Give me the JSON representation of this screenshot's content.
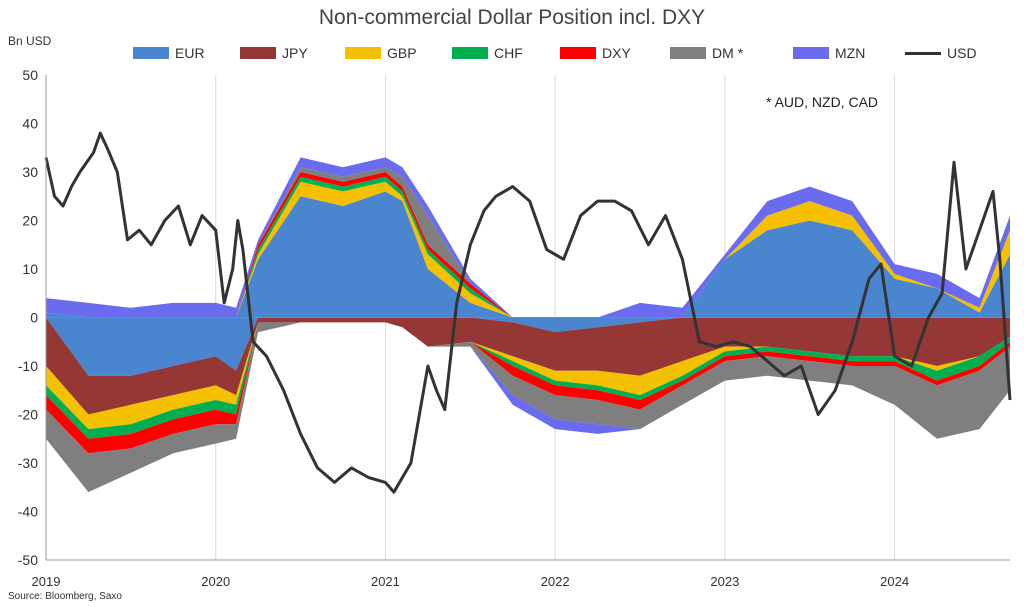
{
  "chart_data": {
    "type": "area",
    "title": "Non-commercial Dollar Position incl. DXY",
    "ylabel": "Bn USD",
    "source": "Source: Bloomberg, Saxo",
    "annotation": "* AUD, NZD, CAD",
    "ylim": [
      -50,
      50
    ],
    "yticks": [
      50,
      40,
      30,
      20,
      10,
      0,
      -10,
      -20,
      -30,
      -40,
      -50
    ],
    "xlim": [
      2019.0,
      2024.68
    ],
    "xticks": [
      {
        "value": 2019,
        "label": "2019"
      },
      {
        "value": 2020,
        "label": "2020"
      },
      {
        "value": 2021,
        "label": "2021"
      },
      {
        "value": 2022,
        "label": "2022"
      },
      {
        "value": 2023,
        "label": "2023"
      },
      {
        "value": 2024,
        "label": "2024"
      }
    ],
    "x": [
      2019.0,
      2019.25,
      2019.5,
      2019.75,
      2020.0,
      2020.12,
      2020.25,
      2020.5,
      2020.75,
      2021.0,
      2021.1,
      2021.25,
      2021.5,
      2021.75,
      2022.0,
      2022.25,
      2022.5,
      2022.75,
      2023.0,
      2023.25,
      2023.5,
      2023.75,
      2024.0,
      2024.25,
      2024.5,
      2024.68
    ],
    "series": [
      {
        "name": "EUR",
        "color": "#4a86d0",
        "values": [
          1,
          -12,
          -12,
          -10,
          -8,
          -11,
          12,
          25,
          23,
          26,
          24,
          10,
          3,
          -1,
          -3,
          -2,
          -1,
          0,
          12,
          18,
          20,
          18,
          8,
          6,
          1,
          13
        ]
      },
      {
        "name": "JPY",
        "color": "#953735",
        "values": [
          -10,
          -8,
          -6,
          -6,
          -6,
          -5,
          -1,
          -1,
          -1,
          -1,
          -2,
          -6,
          -5,
          -7,
          -8,
          -9,
          -11,
          -9,
          -6,
          -6,
          -7,
          -8,
          -8,
          -10,
          -8,
          -4
        ]
      },
      {
        "name": "GBP",
        "color": "#f5c000",
        "values": [
          -4,
          -3,
          -4,
          -3,
          -3,
          -2,
          1,
          3,
          3,
          2,
          1,
          3,
          2,
          -1,
          -2,
          -3,
          -4,
          -3,
          -1,
          3,
          4,
          3,
          1,
          -1,
          1,
          5
        ]
      },
      {
        "name": "CHF",
        "color": "#00b050",
        "values": [
          -2,
          -2,
          -2,
          -2,
          -2,
          -2,
          1,
          1,
          1,
          1,
          1,
          1,
          1,
          -1,
          -1,
          -1,
          -1,
          -1,
          -1,
          -1,
          -1,
          -1,
          -1,
          -2,
          -2,
          -1
        ]
      },
      {
        "name": "DXY",
        "color": "#ff0000",
        "values": [
          -3,
          -3,
          -3,
          -3,
          -3,
          -2,
          1,
          1,
          1,
          1,
          1,
          1,
          1,
          -2,
          -2,
          -2,
          -2,
          -1,
          -1,
          -1,
          -1,
          -1,
          -1,
          -1,
          -1,
          -1
        ]
      },
      {
        "name": "DM *",
        "color": "#7f7f7f",
        "values": [
          -6,
          -8,
          -5,
          -4,
          -4,
          -3,
          -2,
          1,
          1,
          1,
          2,
          6,
          -1,
          -4,
          -5,
          -5,
          -4,
          -4,
          -4,
          -4,
          -4,
          -4,
          -8,
          -11,
          -12,
          -9
        ]
      },
      {
        "name": "MZN",
        "color": "#6b6bf0",
        "values": [
          3,
          3,
          2,
          3,
          3,
          2,
          1,
          2,
          2,
          2,
          2,
          2,
          1,
          -2,
          -2,
          -2,
          3,
          2,
          1,
          3,
          3,
          3,
          2,
          3,
          2,
          3
        ]
      }
    ],
    "line": {
      "name": "USD",
      "color": "#333333",
      "x": [
        2019.0,
        2019.05,
        2019.1,
        2019.15,
        2019.2,
        2019.28,
        2019.32,
        2019.36,
        2019.42,
        2019.48,
        2019.55,
        2019.62,
        2019.7,
        2019.78,
        2019.85,
        2019.92,
        2020.0,
        2020.05,
        2020.1,
        2020.13,
        2020.16,
        2020.22,
        2020.3,
        2020.4,
        2020.5,
        2020.6,
        2020.7,
        2020.8,
        2020.9,
        2021.0,
        2021.05,
        2021.1,
        2021.15,
        2021.2,
        2021.25,
        2021.3,
        2021.35,
        2021.42,
        2021.5,
        2021.58,
        2021.65,
        2021.75,
        2021.85,
        2021.95,
        2022.05,
        2022.15,
        2022.25,
        2022.35,
        2022.45,
        2022.55,
        2022.65,
        2022.75,
        2022.85,
        2022.95,
        2023.05,
        2023.15,
        2023.25,
        2023.35,
        2023.45,
        2023.55,
        2023.65,
        2023.75,
        2023.85,
        2023.92,
        2024.0,
        2024.1,
        2024.2,
        2024.28,
        2024.35,
        2024.42,
        2024.5,
        2024.58,
        2024.62,
        2024.68
      ],
      "values": [
        33,
        25,
        23,
        27,
        30,
        34,
        38,
        35,
        30,
        16,
        18,
        15,
        20,
        23,
        15,
        21,
        18,
        3,
        10,
        20,
        14,
        -5,
        -8,
        -15,
        -24,
        -31,
        -34,
        -31,
        -33,
        -34,
        -36,
        -33,
        -30,
        -20,
        -10,
        -15,
        -19,
        3,
        15,
        22,
        25,
        27,
        24,
        14,
        12,
        21,
        24,
        24,
        22,
        15,
        21,
        12,
        -5,
        -6,
        -5,
        -6,
        -9,
        -12,
        -10,
        -20,
        -15,
        -5,
        8,
        11,
        -8,
        -10,
        0,
        5,
        32,
        10,
        18,
        26,
        12,
        -17
      ]
    },
    "legend_position": "top",
    "grid": "vertical"
  }
}
